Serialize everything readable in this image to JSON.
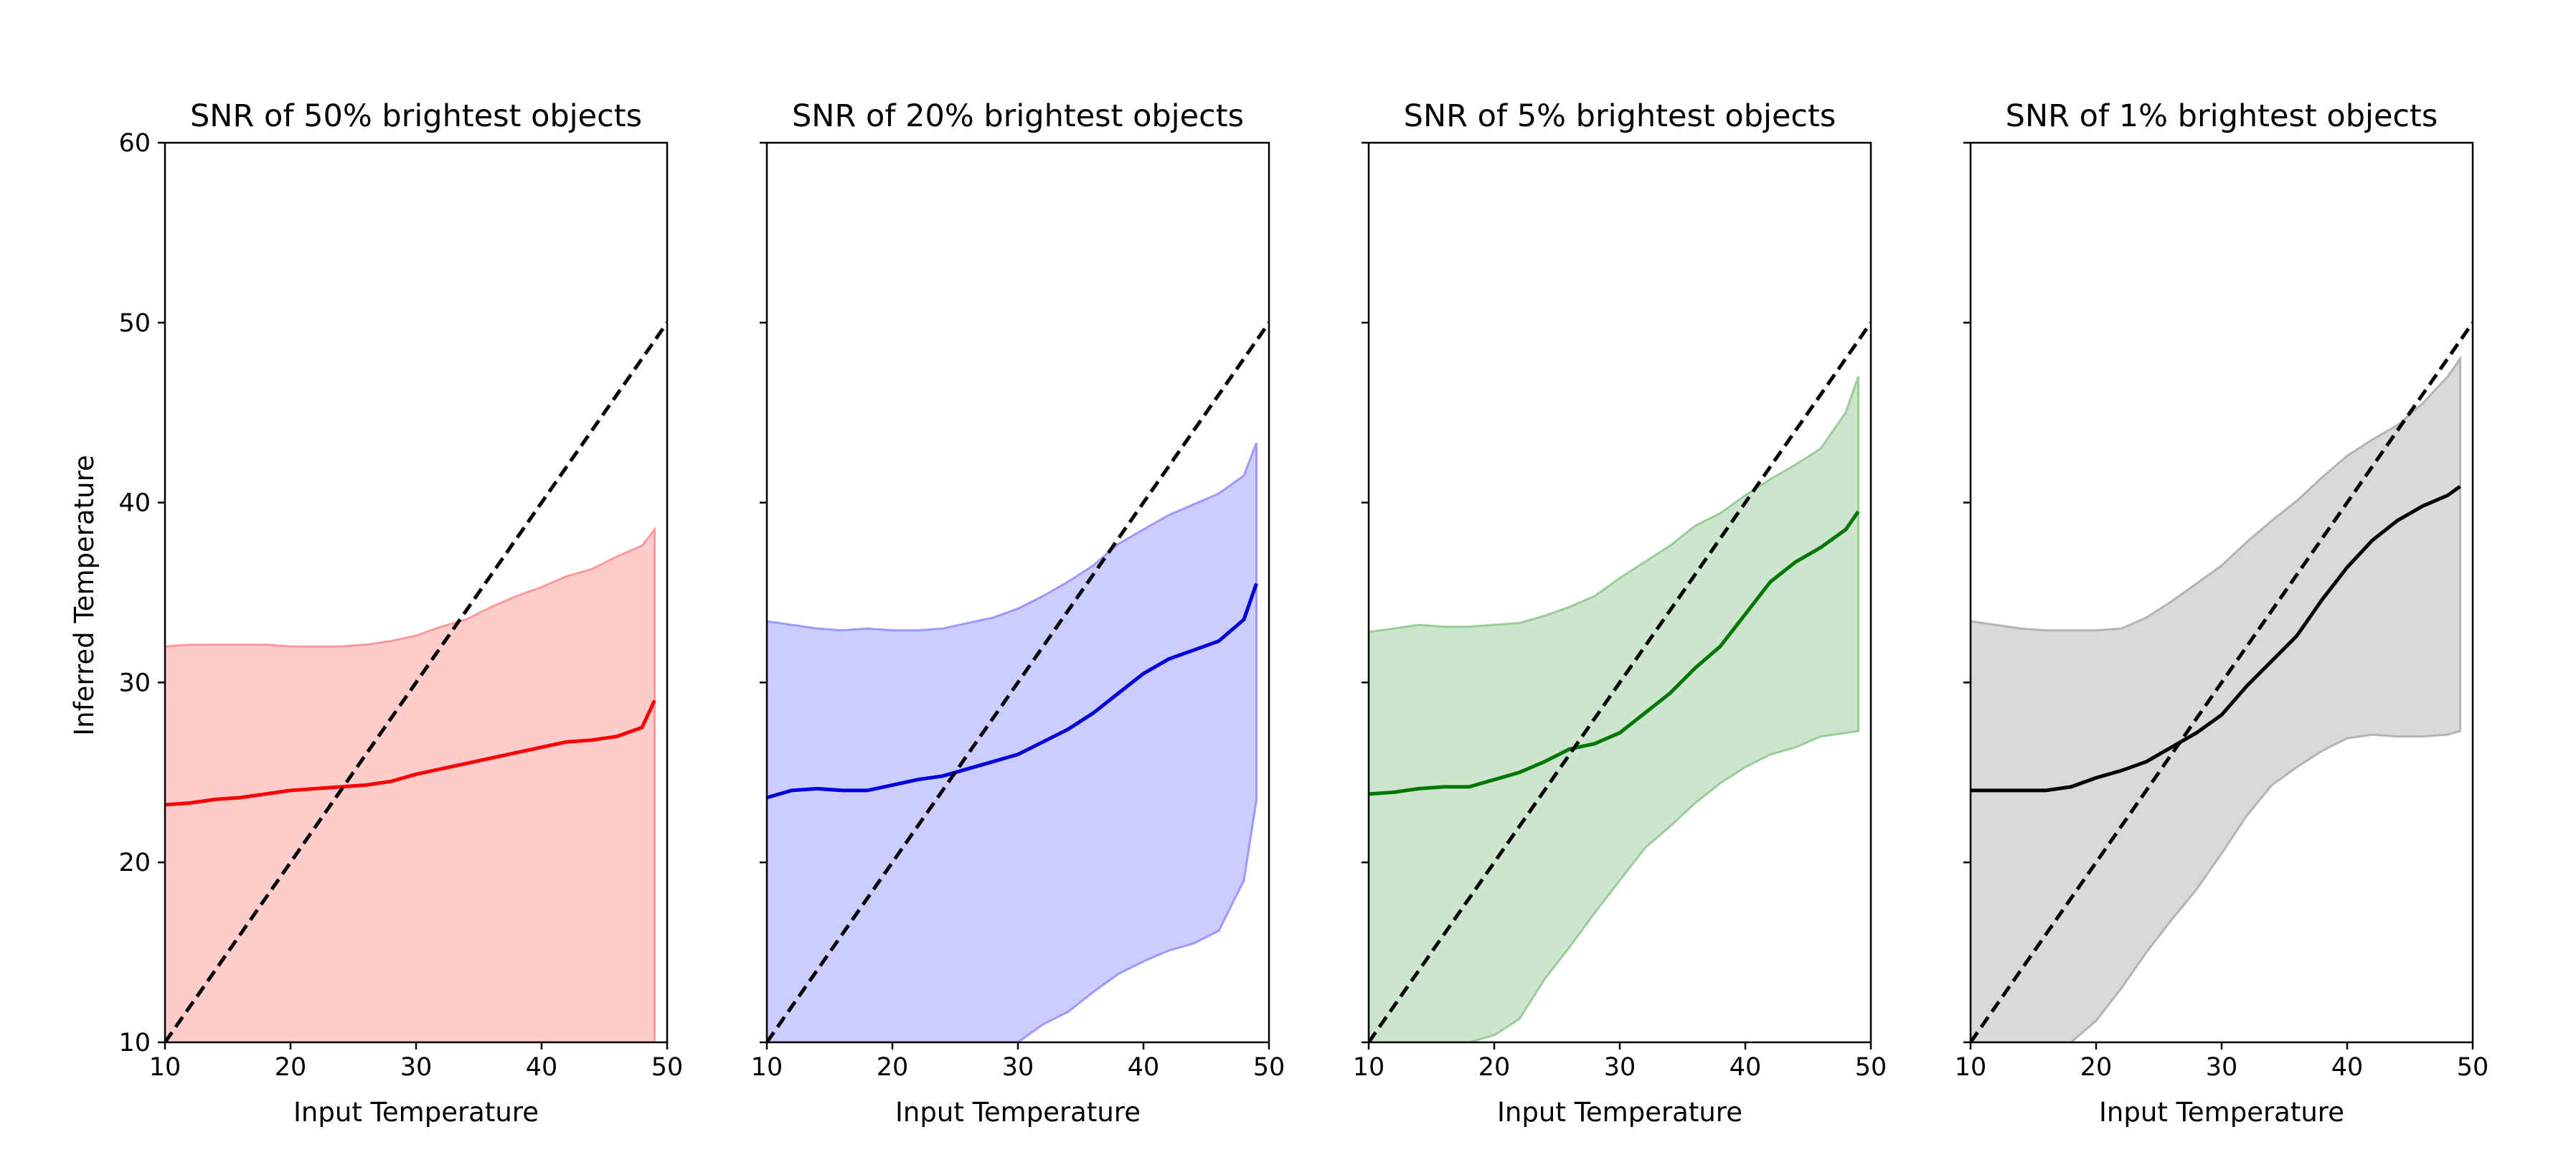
{
  "figure": {
    "ylabel": "Inferred Temperature",
    "identity_line": {
      "style": "dashed",
      "color": "#000000",
      "x": [
        10,
        50
      ],
      "y": [
        10,
        50
      ]
    }
  },
  "chart_data": [
    {
      "type": "line",
      "title": "SNR of 50% brightest objects",
      "xlabel": "Input Temperature",
      "ylabel": "Inferred Temperature",
      "xlim": [
        10,
        50
      ],
      "ylim": [
        10,
        60
      ],
      "xticks": [
        10,
        20,
        30,
        40,
        50
      ],
      "yticks": [
        10,
        20,
        30,
        40,
        50,
        60
      ],
      "grid": false,
      "color": "#ff0000",
      "band_color": "#ff9999",
      "x": [
        10,
        12,
        14,
        16,
        18,
        20,
        22,
        24,
        26,
        28,
        30,
        32,
        34,
        36,
        38,
        40,
        42,
        44,
        46,
        48,
        49
      ],
      "y": [
        23.2,
        23.3,
        23.5,
        23.6,
        23.8,
        24.0,
        24.1,
        24.2,
        24.3,
        24.5,
        24.9,
        25.2,
        25.5,
        25.8,
        26.1,
        26.4,
        26.7,
        26.8,
        27.0,
        27.5,
        29.0
      ],
      "upper": [
        32.0,
        32.1,
        32.1,
        32.1,
        32.1,
        32.0,
        32.0,
        32.0,
        32.1,
        32.3,
        32.6,
        33.1,
        33.5,
        34.2,
        34.8,
        35.3,
        35.9,
        36.3,
        37.0,
        37.6,
        38.5
      ],
      "lower": [
        10,
        10,
        10,
        10,
        10,
        10,
        10,
        10,
        10,
        10,
        10,
        10,
        10,
        10,
        10,
        10,
        10,
        10,
        10,
        10,
        10
      ]
    },
    {
      "type": "line",
      "title": "SNR of 20% brightest objects",
      "xlabel": "Input Temperature",
      "ylabel": "Inferred Temperature",
      "xlim": [
        10,
        50
      ],
      "ylim": [
        10,
        60
      ],
      "xticks": [
        10,
        20,
        30,
        40,
        50
      ],
      "yticks": [
        10,
        20,
        30,
        40,
        50,
        60
      ],
      "grid": false,
      "color": "#0000dd",
      "band_color": "#9999ff",
      "x": [
        10,
        12,
        14,
        16,
        18,
        20,
        22,
        24,
        26,
        28,
        30,
        32,
        34,
        36,
        38,
        40,
        42,
        44,
        46,
        48,
        49
      ],
      "y": [
        23.6,
        24.0,
        24.1,
        24.0,
        24.0,
        24.3,
        24.6,
        24.8,
        25.2,
        25.6,
        26.0,
        26.7,
        27.4,
        28.3,
        29.4,
        30.5,
        31.3,
        31.8,
        32.3,
        33.5,
        35.5
      ],
      "upper": [
        33.4,
        33.2,
        33.0,
        32.9,
        33.0,
        32.9,
        32.9,
        33.0,
        33.3,
        33.6,
        34.1,
        34.8,
        35.6,
        36.5,
        37.7,
        38.5,
        39.3,
        39.9,
        40.5,
        41.5,
        43.3
      ],
      "lower": [
        10,
        10,
        10,
        10,
        10,
        10,
        10,
        10,
        10,
        10,
        10.0,
        11.0,
        11.7,
        12.8,
        13.8,
        14.5,
        15.1,
        15.5,
        16.2,
        19.0,
        23.5
      ]
    },
    {
      "type": "line",
      "title": "SNR of 5% brightest objects",
      "xlabel": "Input Temperature",
      "ylabel": "Inferred Temperature",
      "xlim": [
        10,
        50
      ],
      "ylim": [
        10,
        60
      ],
      "xticks": [
        10,
        20,
        30,
        40,
        50
      ],
      "yticks": [
        10,
        20,
        30,
        40,
        50,
        60
      ],
      "grid": false,
      "color": "#007700",
      "band_color": "#99cc99",
      "x": [
        10,
        12,
        14,
        16,
        18,
        20,
        22,
        24,
        26,
        28,
        30,
        32,
        34,
        36,
        38,
        40,
        42,
        44,
        46,
        48,
        49
      ],
      "y": [
        23.8,
        23.9,
        24.1,
        24.2,
        24.2,
        24.6,
        25.0,
        25.6,
        26.3,
        26.6,
        27.2,
        28.3,
        29.4,
        30.8,
        32.0,
        33.8,
        35.6,
        36.7,
        37.5,
        38.5,
        39.5
      ],
      "upper": [
        32.8,
        33.0,
        33.2,
        33.1,
        33.1,
        33.2,
        33.3,
        33.7,
        34.2,
        34.8,
        35.8,
        36.7,
        37.6,
        38.7,
        39.4,
        40.4,
        41.3,
        42.1,
        43.0,
        45.0,
        47.0
      ],
      "lower": [
        10,
        10,
        10,
        10,
        10,
        10.4,
        11.3,
        13.5,
        15.3,
        17.2,
        19.0,
        20.8,
        22.0,
        23.3,
        24.4,
        25.3,
        26.0,
        26.4,
        27.0,
        27.2,
        27.3
      ]
    },
    {
      "type": "line",
      "title": "SNR of 1% brightest objects",
      "xlabel": "Input Temperature",
      "ylabel": "Inferred Temperature",
      "xlim": [
        10,
        50
      ],
      "ylim": [
        10,
        60
      ],
      "xticks": [
        10,
        20,
        30,
        40,
        50
      ],
      "yticks": [
        10,
        20,
        30,
        40,
        50,
        60
      ],
      "grid": false,
      "color": "#000000",
      "band_color": "#b3b3b3",
      "x": [
        10,
        12,
        14,
        16,
        18,
        20,
        22,
        24,
        26,
        28,
        30,
        32,
        34,
        36,
        38,
        40,
        42,
        44,
        46,
        48,
        49
      ],
      "y": [
        24.0,
        24.0,
        24.0,
        24.0,
        24.2,
        24.7,
        25.1,
        25.6,
        26.4,
        27.2,
        28.2,
        29.8,
        31.2,
        32.6,
        34.6,
        36.4,
        37.9,
        39.0,
        39.8,
        40.4,
        40.9
      ],
      "upper": [
        33.4,
        33.2,
        33.0,
        32.9,
        32.9,
        32.9,
        33.0,
        33.6,
        34.5,
        35.5,
        36.5,
        37.8,
        39.0,
        40.1,
        41.4,
        42.6,
        43.5,
        44.3,
        45.5,
        47.0,
        48.0
      ],
      "lower": [
        10,
        10,
        10,
        10,
        10,
        11.2,
        13.0,
        15.0,
        16.8,
        18.5,
        20.5,
        22.6,
        24.3,
        25.3,
        26.2,
        26.9,
        27.1,
        27.0,
        27.0,
        27.1,
        27.3
      ]
    }
  ]
}
